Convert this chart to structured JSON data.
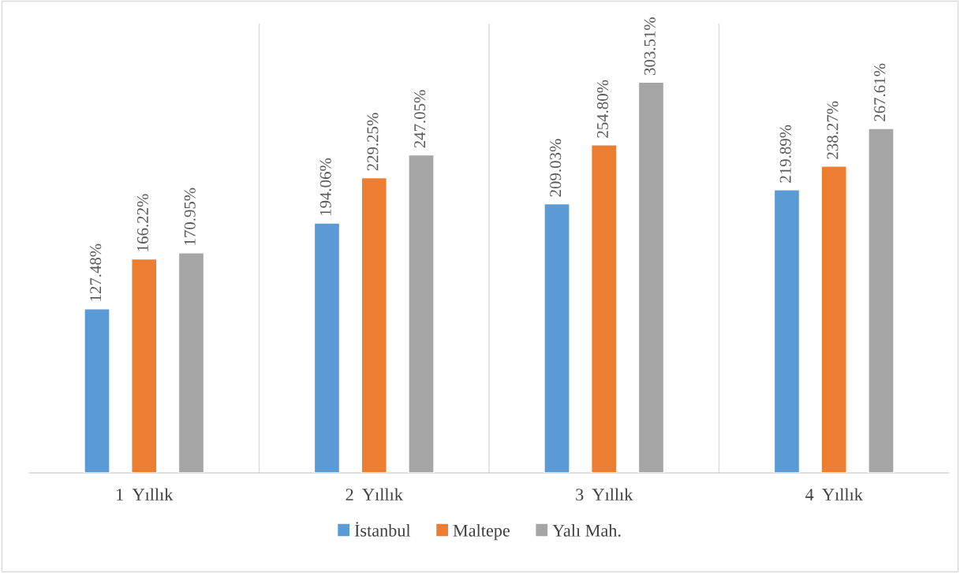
{
  "chart_data": {
    "type": "bar",
    "categories": [
      "1  Yıllık",
      "2  Yıllık",
      "3  Yıllık",
      "4  Yıllık"
    ],
    "series": [
      {
        "name": "İstanbul",
        "color": "#5b9bd5",
        "values": [
          127.48,
          194.06,
          209.03,
          219.89
        ],
        "value_labels": [
          "127.48%",
          "194.06%",
          "209.03%",
          "219.89%"
        ]
      },
      {
        "name": "Maltepe",
        "color": "#ed7d31",
        "values": [
          166.22,
          229.25,
          254.8,
          238.27
        ],
        "value_labels": [
          "166.22%",
          "229.25%",
          "254.80%",
          "238.27%"
        ]
      },
      {
        "name": "Yalı Mah.",
        "color": "#a5a5a5",
        "values": [
          170.95,
          247.05,
          303.51,
          267.61
        ],
        "value_labels": [
          "170.95%",
          "247.05%",
          "303.51%",
          "267.61%"
        ]
      }
    ],
    "grid": "x",
    "legend": "bottom",
    "tick_labels": "x"
  }
}
